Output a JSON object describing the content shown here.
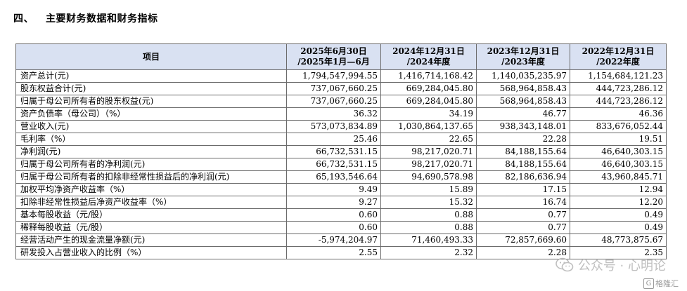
{
  "section": {
    "number": "四、",
    "title": "主要财务数据和财务指标"
  },
  "table": {
    "headers": [
      {
        "line1": "项目",
        "line2": ""
      },
      {
        "line1": "2025年6月30日",
        "line2": "/2025年1月—6月"
      },
      {
        "line1": "2024年12月31日",
        "line2": "/2024年度"
      },
      {
        "line1": "2023年12月31日",
        "line2": "/2023年度"
      },
      {
        "line1": "2022年12月31日",
        "line2": "/2022年度"
      }
    ],
    "rows": [
      [
        "资产总计(元)",
        "1,794,547,994.55",
        "1,416,714,168.42",
        "1,140,035,235.97",
        "1,154,684,121.23"
      ],
      [
        "股东权益合计(元)",
        "737,067,660.25",
        "669,284,045.80",
        "568,964,858.43",
        "444,723,286.12"
      ],
      [
        "归属于母公司所有者的股东权益(元)",
        "737,067,660.25",
        "669,284,045.80",
        "568,964,858.43",
        "444,723,286.12"
      ],
      [
        "资产负债率（母公司）（%）",
        "36.32",
        "34.19",
        "46.77",
        "46.36"
      ],
      [
        "营业收入(元)",
        "573,073,834.89",
        "1,030,864,137.65",
        "938,343,148.01",
        "833,676,052.44"
      ],
      [
        "毛利率（%）",
        "25.46",
        "22.65",
        "22.28",
        "19.51"
      ],
      [
        "净利润(元)",
        "66,732,531.15",
        "98,217,020.71",
        "84,188,155.64",
        "46,640,303.15"
      ],
      [
        "归属于母公司所有者的净利润(元)",
        "66,732,531.15",
        "98,217,020.71",
        "84,188,155.64",
        "46,640,303.15"
      ],
      [
        "归属于母公司所有者的扣除非经常性损益后的净利润(元)",
        "65,193,546.64",
        "94,690,578.98",
        "82,186,636.94",
        "43,960,845.71"
      ],
      [
        "加权平均净资产收益率（%）",
        "9.49",
        "15.89",
        "17.15",
        "12.94"
      ],
      [
        "扣除非经常性损益后净资产收益率（%）",
        "9.27",
        "15.32",
        "16.74",
        "12.20"
      ],
      [
        "基本每股收益（元/股）",
        "0.60",
        "0.88",
        "0.77",
        "0.49"
      ],
      [
        "稀释每股收益（元/股）",
        "0.60",
        "0.88",
        "0.77",
        "0.49"
      ],
      [
        "经营活动产生的现金流量净额(元)",
        "-5,974,204.97",
        "71,460,493.33",
        "72,857,669.60",
        "48,773,875.67"
      ],
      [
        "研发投入占营业收入的比例（%）",
        "2.55",
        "2.32",
        "2.28",
        "2.35"
      ]
    ]
  },
  "watermark": {
    "text": "公众号 · 心明论",
    "badge": "格隆汇",
    "badge_icon": "g-logo-icon",
    "logo_icon": "wechat-logo-icon"
  }
}
